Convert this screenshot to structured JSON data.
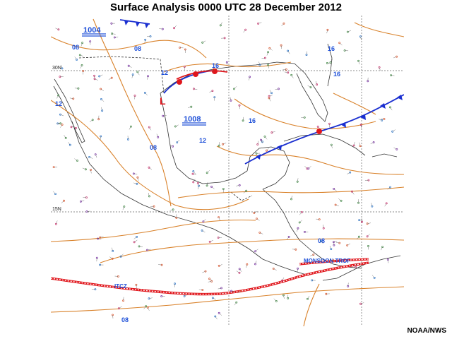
{
  "title": "Surface Analysis 0000 UTC 28 December 2012",
  "credit": "NOAA/NWS",
  "latitude_labels": [
    "30N",
    "15N"
  ],
  "isobar_labels": [
    "08",
    "08",
    "12",
    "16",
    "16",
    "16",
    "12",
    "16",
    "12",
    "08",
    "08",
    "08"
  ],
  "pressure_centers": [
    "1004",
    "1008"
  ],
  "feature_labels": {
    "monsoon": "MONSOON TROF",
    "itcz": "ITCZ"
  },
  "colors": {
    "isobar": "#d9822b",
    "coast": "#333333",
    "cold_front": "#1a2fd0",
    "warm_front": "#e0161c",
    "trough": "#e0161c",
    "grid": "#666666"
  }
}
